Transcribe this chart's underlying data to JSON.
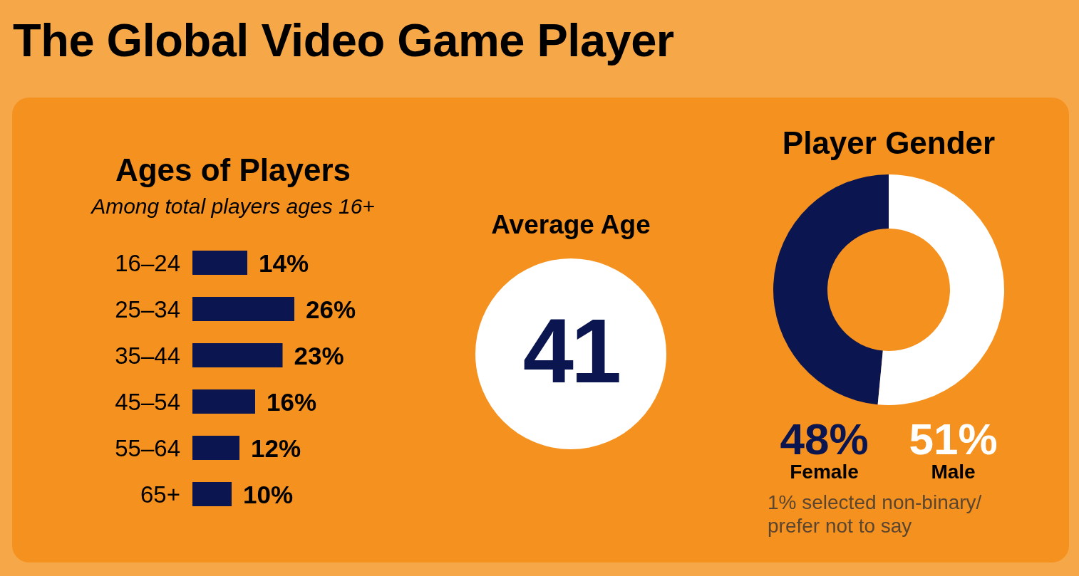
{
  "chart_data": [
    {
      "type": "other",
      "title": "The Global Video Game Player"
    },
    {
      "type": "bar",
      "orientation": "horizontal",
      "title": "Ages of Players",
      "subtitle": "Among total players ages 16+",
      "categories": [
        "16–24",
        "25–34",
        "35–44",
        "45–54",
        "55–64",
        "65+"
      ],
      "values": [
        14,
        26,
        23,
        16,
        12,
        10
      ],
      "color": "#0b1650",
      "value_labels": [
        "14%",
        "26%",
        "23%",
        "16%",
        "12%",
        "10%"
      ],
      "tick_labels": "y"
    },
    {
      "type": "other",
      "title": "Average Age",
      "annotations": [
        "41"
      ]
    },
    {
      "type": "donut",
      "title": "Player Gender",
      "categories": [
        "Female",
        "Male"
      ],
      "values": [
        48,
        51
      ],
      "colors": [
        "#0b1650",
        "#ffffff"
      ],
      "value_labels": [
        "48%",
        "51%"
      ],
      "annotations": [
        "1% selected non-binary/ prefer not to say"
      ]
    }
  ]
}
